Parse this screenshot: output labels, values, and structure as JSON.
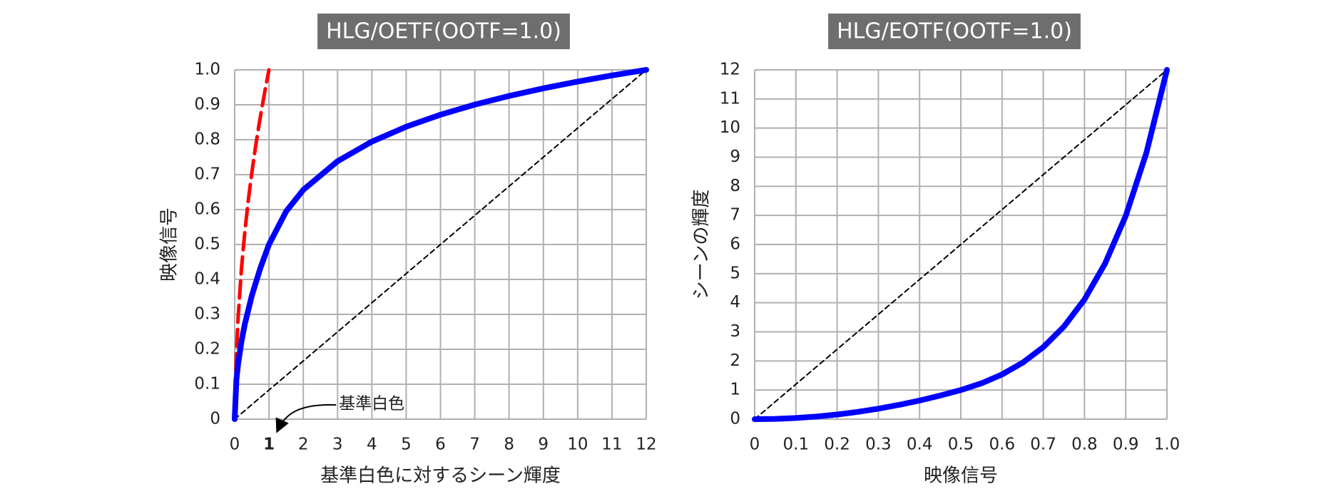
{
  "chart_data": [
    {
      "type": "line",
      "title": "HLG/OETF(OOTF=1.0)",
      "x_label": "基準白色に対するシーン輝度",
      "y_label": "映像信号",
      "xlim": [
        0,
        12
      ],
      "ylim": [
        0,
        1.0
      ],
      "xticks": [
        0,
        1,
        2,
        3,
        4,
        5,
        6,
        7,
        8,
        9,
        10,
        11,
        12
      ],
      "yticks": [
        0,
        0.1,
        0.2,
        0.3,
        0.4,
        0.5,
        0.6,
        0.7,
        0.8,
        0.9,
        {
          "value": 1.0,
          "label": "1.0"
        }
      ],
      "grid": true,
      "annotation": {
        "text": "基準白色",
        "x": 1
      },
      "series": [
        {
          "color": "#ff0000",
          "style": "dashed",
          "x": [
            0,
            0.018,
            0.05,
            0.1,
            0.2,
            0.3,
            0.4,
            0.5,
            0.6,
            0.7,
            0.8,
            0.9,
            1.0
          ],
          "values": [
            0,
            0.081,
            0.1865,
            0.2909,
            0.4337,
            0.5403,
            0.6287,
            0.7055,
            0.7743,
            0.837,
            0.895,
            0.9491,
            1.0
          ]
        },
        {
          "color": "#000000",
          "style": "dotted",
          "x": [
            0,
            12
          ],
          "values": [
            0,
            1.0
          ]
        },
        {
          "color": "#0000ff",
          "style": "solid",
          "x": [
            0,
            0.05,
            0.1,
            0.2,
            0.3,
            0.5,
            0.75,
            1,
            1.5,
            2,
            3,
            4,
            5,
            6,
            7,
            8,
            9,
            10,
            11,
            12
          ],
          "values": [
            0,
            0.1118,
            0.1581,
            0.2236,
            0.2739,
            0.3536,
            0.433,
            0.5,
            0.5948,
            0.6564,
            0.7385,
            0.7946,
            0.8372,
            0.8716,
            0.9005,
            0.9253,
            0.9471,
            0.9665,
            0.984,
            1.0
          ]
        }
      ]
    },
    {
      "type": "line",
      "title": "HLG/EOTF(OOTF=1.0)",
      "x_label": "映像信号",
      "y_label": "シーンの輝度",
      "xlim": [
        0,
        1.0
      ],
      "ylim": [
        0,
        12
      ],
      "xticks": [
        0,
        0.1,
        0.2,
        0.3,
        0.4,
        0.5,
        0.6,
        0.7,
        0.8,
        0.9,
        {
          "value": 1.0,
          "label": "1.0"
        }
      ],
      "yticks": [
        0,
        1,
        2,
        3,
        4,
        5,
        6,
        7,
        8,
        9,
        10,
        11,
        12
      ],
      "grid": true,
      "series": [
        {
          "color": "#000000",
          "style": "dotted",
          "x": [
            0,
            1.0
          ],
          "values": [
            0,
            12
          ]
        },
        {
          "color": "#0000ff",
          "style": "solid",
          "x": [
            0,
            0.05,
            0.1,
            0.15,
            0.2,
            0.25,
            0.3,
            0.35,
            0.4,
            0.45,
            0.5,
            0.55,
            0.6,
            0.65,
            0.7,
            0.75,
            0.8,
            0.85,
            0.9,
            0.95,
            1.0
          ],
          "values": [
            0,
            0.01,
            0.04,
            0.09,
            0.16,
            0.25,
            0.36,
            0.49,
            0.64,
            0.81,
            1.0,
            1.2308,
            1.536,
            1.9397,
            2.4736,
            3.1797,
            4.1136,
            5.349,
            6.9824,
            9.1426,
            12.0
          ]
        }
      ]
    }
  ]
}
